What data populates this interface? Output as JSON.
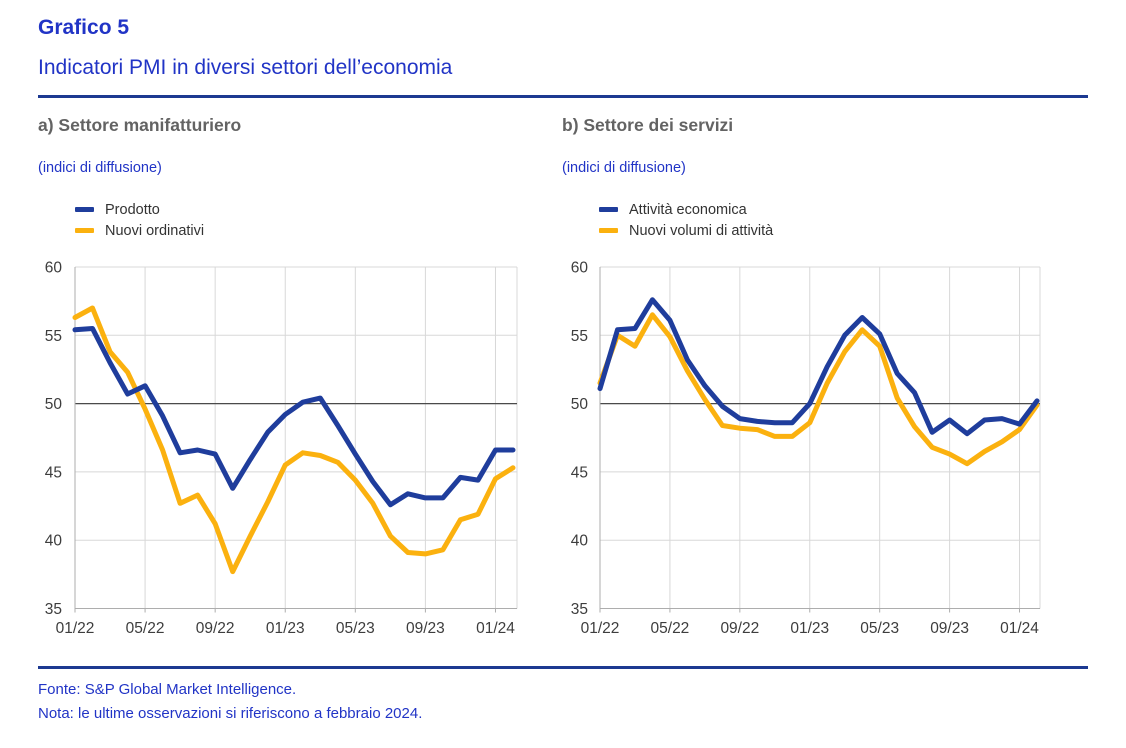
{
  "header": {
    "figure_label": "Grafico 5",
    "title": "Indicatori PMI in diversi settori dell’economia"
  },
  "footer": {
    "source": "Fonte: S&P Global Market Intelligence.",
    "note": "Nota: le ultime osservazioni si riferiscono a febbraio 2024."
  },
  "colors": {
    "accent_text_blue": "#2134C6",
    "rule_blue": "#1C3991",
    "series_blue": "#1F3D9C",
    "series_orange": "#FBB10F",
    "panel_title_gray": "#636363",
    "axis_label_gray": "#3D3D3D",
    "grid_gray": "#D8D8D8",
    "axis_gray": "#ADADAD",
    "reference_line_gray": "#4A4A4A"
  },
  "chart_data": [
    {
      "type": "line",
      "title": "a) Settore manifatturiero",
      "subtitle": "(indici di diffusione)",
      "grid": true,
      "legend_position": "top-left",
      "ylim": [
        35,
        60
      ],
      "yticks": [
        35,
        40,
        45,
        50,
        55,
        60
      ],
      "reference_line": 50,
      "x": [
        "01/22",
        "02/22",
        "03/22",
        "04/22",
        "05/22",
        "06/22",
        "07/22",
        "08/22",
        "09/22",
        "10/22",
        "11/22",
        "12/22",
        "01/23",
        "02/23",
        "03/23",
        "04/23",
        "05/23",
        "06/23",
        "07/23",
        "08/23",
        "09/23",
        "10/23",
        "11/23",
        "12/23",
        "01/24",
        "02/24"
      ],
      "x_tick_labels": [
        "01/22",
        "05/22",
        "09/22",
        "01/23",
        "05/23",
        "09/23",
        "01/24"
      ],
      "x_tick_every": 4,
      "series": [
        {
          "name": "Prodotto",
          "color": "#1F3D9C",
          "values": [
            55.4,
            55.5,
            53.0,
            50.7,
            51.3,
            49.1,
            46.4,
            46.6,
            46.3,
            43.8,
            45.9,
            47.9,
            49.2,
            50.1,
            50.4,
            48.4,
            46.3,
            44.3,
            42.6,
            43.4,
            43.1,
            43.1,
            44.6,
            44.4,
            46.6,
            46.6
          ]
        },
        {
          "name": "Nuovi ordinativi",
          "color": "#FBB10F",
          "values": [
            56.3,
            57.0,
            53.8,
            52.3,
            49.6,
            46.6,
            42.7,
            43.3,
            41.2,
            37.7,
            40.3,
            42.8,
            45.5,
            46.4,
            46.2,
            45.7,
            44.4,
            42.7,
            40.3,
            39.1,
            39.0,
            39.3,
            41.5,
            41.9,
            44.5,
            45.3
          ]
        }
      ]
    },
    {
      "type": "line",
      "title": "b) Settore dei servizi",
      "subtitle": "(indici di diffusione)",
      "grid": true,
      "legend_position": "top-left",
      "ylim": [
        35,
        60
      ],
      "yticks": [
        35,
        40,
        45,
        50,
        55,
        60
      ],
      "reference_line": 50,
      "x": [
        "01/22",
        "02/22",
        "03/22",
        "04/22",
        "05/22",
        "06/22",
        "07/22",
        "08/22",
        "09/22",
        "10/22",
        "11/22",
        "12/22",
        "01/23",
        "02/23",
        "03/23",
        "04/23",
        "05/23",
        "06/23",
        "07/23",
        "08/23",
        "09/23",
        "10/23",
        "11/23",
        "12/23",
        "01/24",
        "02/24"
      ],
      "x_tick_labels": [
        "01/22",
        "05/22",
        "09/22",
        "01/23",
        "05/23",
        "09/23",
        "01/24"
      ],
      "x_tick_every": 4,
      "series": [
        {
          "name": "Attività economica",
          "color": "#1F3D9C",
          "values": [
            51.1,
            55.4,
            55.5,
            57.6,
            56.1,
            53.2,
            51.3,
            49.8,
            48.9,
            48.7,
            48.6,
            48.6,
            50.0,
            52.7,
            55.0,
            56.3,
            55.1,
            52.2,
            50.8,
            47.9,
            48.8,
            47.8,
            48.8,
            48.9,
            48.5,
            50.2
          ]
        },
        {
          "name": "Nuovi volumi di attività",
          "color": "#FBB10F",
          "values": [
            51.5,
            55.0,
            54.2,
            56.5,
            54.9,
            52.4,
            50.3,
            48.4,
            48.2,
            48.1,
            47.6,
            47.6,
            48.6,
            51.5,
            53.8,
            55.4,
            54.2,
            50.4,
            48.3,
            46.8,
            46.3,
            45.6,
            46.5,
            47.2,
            48.1,
            49.9
          ]
        }
      ]
    }
  ]
}
